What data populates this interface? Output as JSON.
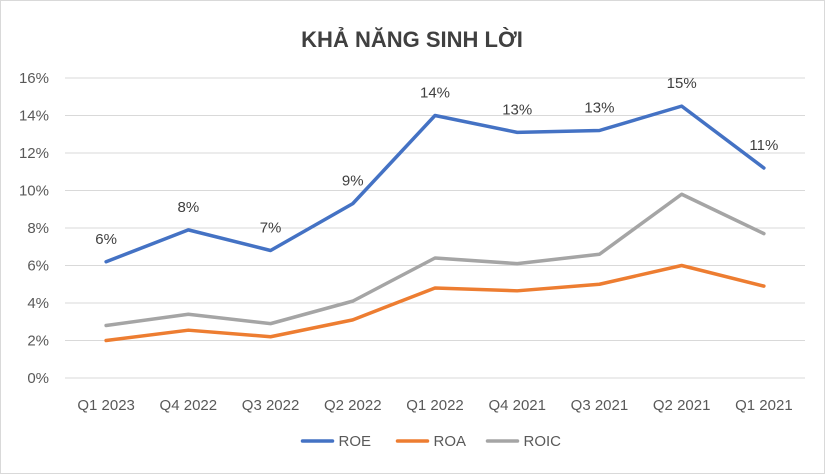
{
  "chart_data": {
    "type": "line",
    "title": "KHẢ NĂNG SINH LỜI",
    "categories": [
      "Q1 2023",
      "Q4 2022",
      "Q3 2022",
      "Q2 2022",
      "Q1 2022",
      "Q4 2021",
      "Q3 2021",
      "Q2 2021",
      "Q1 2021"
    ],
    "ylim": [
      0,
      16
    ],
    "yticks": [
      0,
      2,
      4,
      6,
      8,
      10,
      12,
      14,
      16
    ],
    "ytick_labels": [
      "0%",
      "2%",
      "4%",
      "6%",
      "8%",
      "10%",
      "12%",
      "14%",
      "16%"
    ],
    "grid": true,
    "legend_position": "bottom",
    "series": [
      {
        "name": "ROE",
        "color": "#4472c4",
        "values": [
          6.2,
          7.9,
          6.8,
          9.3,
          14.0,
          13.1,
          13.2,
          14.5,
          11.2
        ],
        "data_labels": [
          "6%",
          "8%",
          "7%",
          "9%",
          "14%",
          "13%",
          "13%",
          "15%",
          "11%"
        ]
      },
      {
        "name": "ROA",
        "color": "#ed7d31",
        "values": [
          2.0,
          2.55,
          2.2,
          3.1,
          4.8,
          4.65,
          5.0,
          6.0,
          4.9
        ]
      },
      {
        "name": "ROIC",
        "color": "#a5a5a5",
        "values": [
          2.8,
          3.4,
          2.9,
          4.1,
          6.4,
          6.1,
          6.6,
          9.8,
          7.7
        ]
      }
    ]
  }
}
